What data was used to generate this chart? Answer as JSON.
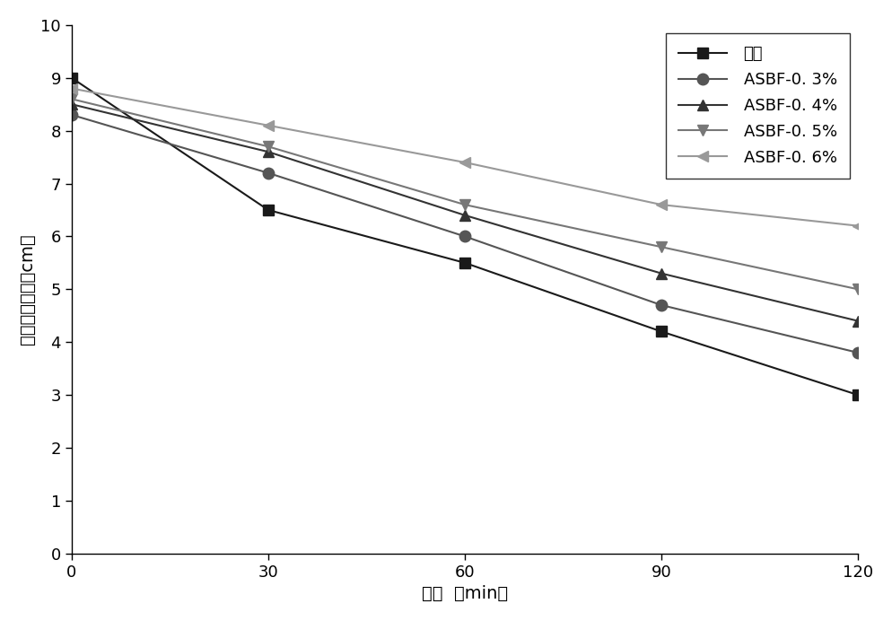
{
  "x": [
    0,
    30,
    60,
    90,
    120
  ],
  "series": [
    {
      "label": "空白",
      "values": [
        9.0,
        6.5,
        5.5,
        4.2,
        3.0
      ],
      "color": "#1a1a1a",
      "marker": "s",
      "linestyle": "-"
    },
    {
      "label": "ASBF-0. 3%",
      "values": [
        8.3,
        7.2,
        6.0,
        4.7,
        3.8
      ],
      "color": "#555555",
      "marker": "o",
      "linestyle": "-"
    },
    {
      "label": "ASBF-0. 4%",
      "values": [
        8.5,
        7.6,
        6.4,
        5.3,
        4.4
      ],
      "color": "#333333",
      "marker": "^",
      "linestyle": "-"
    },
    {
      "label": "ASBF-0. 5%",
      "values": [
        8.6,
        7.7,
        6.6,
        5.8,
        5.0
      ],
      "color": "#777777",
      "marker": "v",
      "linestyle": "-"
    },
    {
      "label": "ASBF-0. 6%",
      "values": [
        8.8,
        8.1,
        7.4,
        6.6,
        6.2
      ],
      "color": "#999999",
      "marker": "<",
      "linestyle": "-"
    }
  ],
  "xlabel": "时间  （min）",
  "ylabel": "混凝土塘落度（cm）",
  "xlim": [
    0,
    120
  ],
  "ylim": [
    0,
    10
  ],
  "xticks": [
    0,
    30,
    60,
    90,
    120
  ],
  "yticks": [
    0,
    1,
    2,
    3,
    4,
    5,
    6,
    7,
    8,
    9,
    10
  ],
  "legend_loc": "upper right",
  "background_color": "#ffffff",
  "figsize": [
    9.94,
    6.92
  ],
  "dpi": 100
}
